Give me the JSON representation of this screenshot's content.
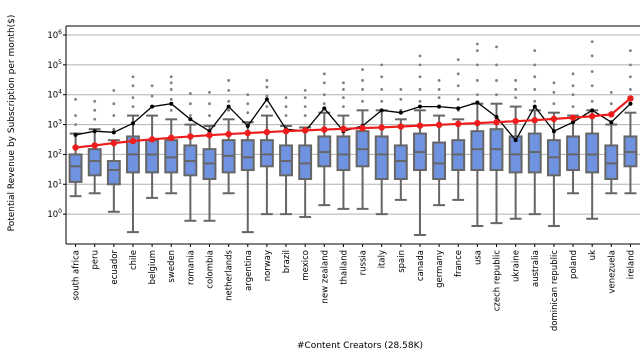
{
  "chart_data": {
    "type": "box",
    "xlabel": "#Content Creators (28.58K)",
    "ylabel": "Potential Revenue by Subscription per month($)",
    "yscale": "log",
    "ylim": [
      0.1,
      2000000
    ],
    "yticks": [
      {
        "value": 1,
        "base": "10",
        "exp": "0"
      },
      {
        "value": 10,
        "base": "10",
        "exp": "1"
      },
      {
        "value": 100,
        "base": "10",
        "exp": "2"
      },
      {
        "value": 1000,
        "base": "10",
        "exp": "3"
      },
      {
        "value": 10000,
        "base": "10",
        "exp": "4"
      },
      {
        "value": 100000,
        "base": "10",
        "exp": "5"
      },
      {
        "value": 1000000,
        "base": "10",
        "exp": "6"
      }
    ],
    "grid": "horizontal",
    "colors": {
      "box": "#6f93e0",
      "box_edge": "#666666",
      "median_line": "#ee1c1c",
      "mean_line": "#000000",
      "outlier": "#808080"
    },
    "categories": [
      "south africa",
      "peru",
      "ecuador",
      "chile",
      "belgium",
      "sweden",
      "romania",
      "colombia",
      "netherlands",
      "argentina",
      "norway",
      "brazil",
      "mexico",
      "new zealand",
      "thailand",
      "russia",
      "italy",
      "spain",
      "canada",
      "germany",
      "france",
      "usa",
      "czech republic",
      "ukraine",
      "australia",
      "dominican republic",
      "poland",
      "uk",
      "venezuela",
      "ireland"
    ],
    "boxes": [
      {
        "q1": 12,
        "median": 40,
        "q3": 100,
        "whislo": 4,
        "whishi": 500,
        "fliers": [
          1000,
          2000,
          7000
        ]
      },
      {
        "q1": 20,
        "median": 60,
        "q3": 150,
        "whislo": 5,
        "whishi": 700,
        "fliers": [
          1500,
          3000,
          6000
        ]
      },
      {
        "q1": 10,
        "median": 30,
        "q3": 60,
        "whislo": 1.2,
        "whishi": 300,
        "fliers": [
          700,
          2000,
          5000,
          14000
        ]
      },
      {
        "q1": 25,
        "median": 100,
        "q3": 400,
        "whislo": 0.25,
        "whishi": 2000,
        "fliers": [
          4000,
          8000,
          20000,
          40000
        ]
      },
      {
        "q1": 25,
        "median": 100,
        "q3": 300,
        "whislo": 3.5,
        "whishi": 2000,
        "fliers": [
          4000,
          9000,
          20000
        ]
      },
      {
        "q1": 25,
        "median": 80,
        "q3": 300,
        "whislo": 5,
        "whishi": 1500,
        "fliers": [
          3000,
          7000,
          15000,
          25000,
          40000
        ]
      },
      {
        "q1": 20,
        "median": 60,
        "q3": 200,
        "whislo": 0.6,
        "whishi": 1000,
        "fliers": [
          2000,
          5000,
          11000
        ]
      },
      {
        "q1": 15,
        "median": 50,
        "q3": 150,
        "whislo": 0.6,
        "whishi": 900,
        "fliers": [
          2000,
          5000,
          12000
        ]
      },
      {
        "q1": 25,
        "median": 90,
        "q3": 300,
        "whislo": 5,
        "whishi": 1500,
        "fliers": [
          3000,
          6000,
          14000,
          30000
        ]
      },
      {
        "q1": 30,
        "median": 80,
        "q3": 300,
        "whislo": 0.25,
        "whishi": 1200,
        "fliers": [
          2500,
          5000,
          10000
        ]
      },
      {
        "q1": 40,
        "median": 100,
        "q3": 300,
        "whislo": 1,
        "whishi": 2000,
        "fliers": [
          4000,
          9000,
          18000,
          30000
        ]
      },
      {
        "q1": 20,
        "median": 60,
        "q3": 200,
        "whislo": 1,
        "whishi": 900,
        "fliers": [
          2000,
          4000,
          8000
        ]
      },
      {
        "q1": 15,
        "median": 50,
        "q3": 200,
        "whislo": 0.8,
        "whishi": 800,
        "fliers": [
          2000,
          4000,
          8000,
          14000
        ]
      },
      {
        "q1": 40,
        "median": 120,
        "q3": 400,
        "whislo": 2,
        "whishi": 2500,
        "fliers": [
          5000,
          10000,
          25000,
          50000
        ]
      },
      {
        "q1": 30,
        "median": 100,
        "q3": 400,
        "whislo": 1.5,
        "whishi": 2000,
        "fliers": [
          4000,
          8000,
          15000,
          25000
        ]
      },
      {
        "q1": 40,
        "median": 150,
        "q3": 600,
        "whislo": 1.5,
        "whishi": 3000,
        "fliers": [
          6000,
          15000,
          30000,
          70000
        ]
      },
      {
        "q1": 15,
        "median": 100,
        "q3": 400,
        "whislo": 1,
        "whishi": 3000,
        "fliers": [
          6000,
          15000,
          40000,
          100000
        ]
      },
      {
        "q1": 15,
        "median": 60,
        "q3": 200,
        "whislo": 3,
        "whishi": 1500,
        "fliers": [
          3000,
          7000,
          15000
        ]
      },
      {
        "q1": 30,
        "median": 120,
        "q3": 500,
        "whislo": 0.2,
        "whishi": 3000,
        "fliers": [
          6000,
          15000,
          40000,
          100000,
          200000
        ]
      },
      {
        "q1": 15,
        "median": 50,
        "q3": 250,
        "whislo": 2,
        "whishi": 2000,
        "fliers": [
          4000,
          8000,
          15000,
          30000
        ]
      },
      {
        "q1": 30,
        "median": 100,
        "q3": 300,
        "whislo": 3,
        "whishi": 1500,
        "fliers": [
          3000,
          7000,
          20000,
          50000,
          150000
        ]
      },
      {
        "q1": 30,
        "median": 150,
        "q3": 600,
        "whislo": 0.4,
        "whishi": 5000,
        "fliers": [
          10000,
          30000,
          100000,
          300000,
          500000
        ]
      },
      {
        "q1": 30,
        "median": 150,
        "q3": 700,
        "whislo": 0.5,
        "whishi": 5000,
        "fliers": [
          10000,
          30000,
          100000,
          400000
        ]
      },
      {
        "q1": 25,
        "median": 100,
        "q3": 400,
        "whislo": 0.7,
        "whishi": 4000,
        "fliers": [
          8000,
          15000,
          30000
        ]
      },
      {
        "q1": 25,
        "median": 120,
        "q3": 500,
        "whislo": 1,
        "whishi": 3000,
        "fliers": [
          6000,
          15000,
          40000,
          100000,
          300000
        ]
      },
      {
        "q1": 20,
        "median": 80,
        "q3": 300,
        "whislo": 0.4,
        "whishi": 2500,
        "fliers": [
          5000,
          12000,
          25000
        ]
      },
      {
        "q1": 30,
        "median": 100,
        "q3": 400,
        "whislo": 5,
        "whishi": 2000,
        "fliers": [
          4000,
          10000,
          20000,
          50000
        ]
      },
      {
        "q1": 25,
        "median": 100,
        "q3": 500,
        "whislo": 0.7,
        "whishi": 3000,
        "fliers": [
          6000,
          20000,
          60000,
          200000,
          600000
        ]
      },
      {
        "q1": 15,
        "median": 50,
        "q3": 200,
        "whislo": 5,
        "whishi": 1000,
        "fliers": [
          2000,
          5000,
          12000
        ]
      },
      {
        "q1": 40,
        "median": 120,
        "q3": 400,
        "whislo": 5,
        "whishi": 2500,
        "fliers": [
          5000,
          15000,
          40000,
          100000,
          300000
        ]
      }
    ],
    "mean_series": [
      450,
      600,
      550,
      1100,
      4000,
      5000,
      1500,
      600,
      4000,
      900,
      7000,
      700,
      600,
      3500,
      600,
      900,
      3000,
      2500,
      4000,
      4000,
      3500,
      5500,
      1800,
      300,
      4000,
      600,
      1200,
      3000,
      1200,
      5000
    ],
    "median_trend": [
      170,
      200,
      240,
      280,
      320,
      360,
      400,
      440,
      480,
      520,
      560,
      600,
      640,
      680,
      720,
      760,
      800,
      860,
      920,
      980,
      1050,
      1120,
      1200,
      1300,
      1400,
      1550,
      1700,
      1900,
      2200,
      7500
    ]
  }
}
